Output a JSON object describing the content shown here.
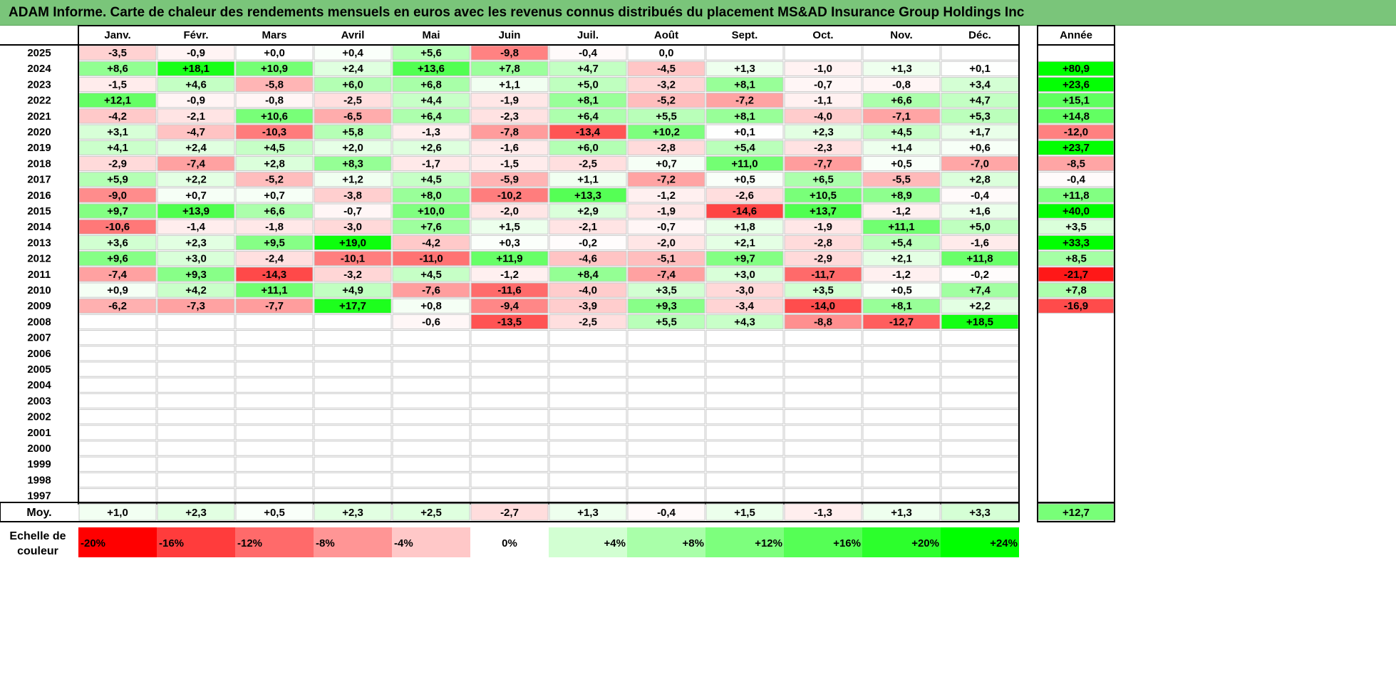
{
  "title": "ADAM Informe. Carte de chaleur des rendements mensuels en euros avec les revenus connus distribués du placement MS&AD Insurance Group Holdings Inc",
  "chart_data": {
    "type": "heatmap",
    "months": [
      "Janv.",
      "Févr.",
      "Mars",
      "Avril",
      "Mai",
      "Juin",
      "Juil.",
      "Août",
      "Sept.",
      "Oct.",
      "Nov.",
      "Déc."
    ],
    "year_header": "Année",
    "rows": [
      {
        "year": "2025",
        "values": [
          "-3,5",
          "-0,9",
          "+0,0",
          "+0,4",
          "+5,6",
          "-9,8",
          "-0,4",
          "0,0",
          "",
          "",
          "",
          ""
        ],
        "annual": ""
      },
      {
        "year": "2024",
        "values": [
          "+8,6",
          "+18,1",
          "+10,9",
          "+2,4",
          "+13,6",
          "+7,8",
          "+4,7",
          "-4,5",
          "+1,3",
          "-1,0",
          "+1,3",
          "+0,1"
        ],
        "annual": "+80,9"
      },
      {
        "year": "2023",
        "values": [
          "-1,5",
          "+4,6",
          "-5,8",
          "+6,0",
          "+6,8",
          "+1,1",
          "+5,0",
          "-3,2",
          "+8,1",
          "-0,7",
          "-0,8",
          "+3,4"
        ],
        "annual": "+23,6"
      },
      {
        "year": "2022",
        "values": [
          "+12,1",
          "-0,9",
          "-0,8",
          "-2,5",
          "+4,4",
          "-1,9",
          "+8,1",
          "-5,2",
          "-7,2",
          "-1,1",
          "+6,6",
          "+4,7"
        ],
        "annual": "+15,1"
      },
      {
        "year": "2021",
        "values": [
          "-4,2",
          "-2,1",
          "+10,6",
          "-6,5",
          "+6,4",
          "-2,3",
          "+6,4",
          "+5,5",
          "+8,1",
          "-4,0",
          "-7,1",
          "+5,3"
        ],
        "annual": "+14,8"
      },
      {
        "year": "2020",
        "values": [
          "+3,1",
          "-4,7",
          "-10,3",
          "+5,8",
          "-1,3",
          "-7,8",
          "-13,4",
          "+10,2",
          "+0,1",
          "+2,3",
          "+4,5",
          "+1,7"
        ],
        "annual": "-12,0"
      },
      {
        "year": "2019",
        "values": [
          "+4,1",
          "+2,4",
          "+4,5",
          "+2,0",
          "+2,6",
          "-1,6",
          "+6,0",
          "-2,8",
          "+5,4",
          "-2,3",
          "+1,4",
          "+0,6"
        ],
        "annual": "+23,7"
      },
      {
        "year": "2018",
        "values": [
          "-2,9",
          "-7,4",
          "+2,8",
          "+8,3",
          "-1,7",
          "-1,5",
          "-2,5",
          "+0,7",
          "+11,0",
          "-7,7",
          "+0,5",
          "-7,0"
        ],
        "annual": "-8,5"
      },
      {
        "year": "2017",
        "values": [
          "+5,9",
          "+2,2",
          "-5,2",
          "+1,2",
          "+4,5",
          "-5,9",
          "+1,1",
          "-7,2",
          "+0,5",
          "+6,5",
          "-5,5",
          "+2,8"
        ],
        "annual": "-0,4"
      },
      {
        "year": "2016",
        "values": [
          "-9,0",
          "+0,7",
          "+0,7",
          "-3,8",
          "+8,0",
          "-10,2",
          "+13,3",
          "-1,2",
          "-2,6",
          "+10,5",
          "+8,9",
          "-0,4"
        ],
        "annual": "+11,8"
      },
      {
        "year": "2015",
        "values": [
          "+9,7",
          "+13,9",
          "+6,6",
          "-0,7",
          "+10,0",
          "-2,0",
          "+2,9",
          "-1,9",
          "-14,6",
          "+13,7",
          "-1,2",
          "+1,6"
        ],
        "annual": "+40,0"
      },
      {
        "year": "2014",
        "values": [
          "-10,6",
          "-1,4",
          "-1,8",
          "-3,0",
          "+7,6",
          "+1,5",
          "-2,1",
          "-0,7",
          "+1,8",
          "-1,9",
          "+11,1",
          "+5,0"
        ],
        "annual": "+3,5"
      },
      {
        "year": "2013",
        "values": [
          "+3,6",
          "+2,3",
          "+9,5",
          "+19,0",
          "-4,2",
          "+0,3",
          "-0,2",
          "-2,0",
          "+2,1",
          "-2,8",
          "+5,4",
          "-1,6"
        ],
        "annual": "+33,3"
      },
      {
        "year": "2012",
        "values": [
          "+9,6",
          "+3,0",
          "-2,4",
          "-10,1",
          "-11,0",
          "+11,9",
          "-4,6",
          "-5,1",
          "+9,7",
          "-2,9",
          "+2,1",
          "+11,8"
        ],
        "annual": "+8,5"
      },
      {
        "year": "2011",
        "values": [
          "-7,4",
          "+9,3",
          "-14,3",
          "-3,2",
          "+4,5",
          "-1,2",
          "+8,4",
          "-7,4",
          "+3,0",
          "-11,7",
          "-1,2",
          "-0,2"
        ],
        "annual": "-21,7"
      },
      {
        "year": "2010",
        "values": [
          "+0,9",
          "+4,2",
          "+11,1",
          "+4,9",
          "-7,6",
          "-11,6",
          "-4,0",
          "+3,5",
          "-3,0",
          "+3,5",
          "+0,5",
          "+7,4"
        ],
        "annual": "+7,8"
      },
      {
        "year": "2009",
        "values": [
          "-6,2",
          "-7,3",
          "-7,7",
          "+17,7",
          "+0,8",
          "-9,4",
          "-3,9",
          "+9,3",
          "-3,4",
          "-14,0",
          "+8,1",
          "+2,2"
        ],
        "annual": "-16,9"
      },
      {
        "year": "2008",
        "values": [
          "",
          "",
          "",
          "",
          "-0,6",
          "-13,5",
          "-2,5",
          "+5,5",
          "+4,3",
          "-8,8",
          "-12,7",
          "+18,5"
        ],
        "annual": ""
      },
      {
        "year": "2007",
        "values": [
          "",
          "",
          "",
          "",
          "",
          "",
          "",
          "",
          "",
          "",
          "",
          ""
        ],
        "annual": ""
      },
      {
        "year": "2006",
        "values": [
          "",
          "",
          "",
          "",
          "",
          "",
          "",
          "",
          "",
          "",
          "",
          ""
        ],
        "annual": ""
      },
      {
        "year": "2005",
        "values": [
          "",
          "",
          "",
          "",
          "",
          "",
          "",
          "",
          "",
          "",
          "",
          ""
        ],
        "annual": ""
      },
      {
        "year": "2004",
        "values": [
          "",
          "",
          "",
          "",
          "",
          "",
          "",
          "",
          "",
          "",
          "",
          ""
        ],
        "annual": ""
      },
      {
        "year": "2003",
        "values": [
          "",
          "",
          "",
          "",
          "",
          "",
          "",
          "",
          "",
          "",
          "",
          ""
        ],
        "annual": ""
      },
      {
        "year": "2002",
        "values": [
          "",
          "",
          "",
          "",
          "",
          "",
          "",
          "",
          "",
          "",
          "",
          ""
        ],
        "annual": ""
      },
      {
        "year": "2001",
        "values": [
          "",
          "",
          "",
          "",
          "",
          "",
          "",
          "",
          "",
          "",
          "",
          ""
        ],
        "annual": ""
      },
      {
        "year": "2000",
        "values": [
          "",
          "",
          "",
          "",
          "",
          "",
          "",
          "",
          "",
          "",
          "",
          ""
        ],
        "annual": ""
      },
      {
        "year": "1999",
        "values": [
          "",
          "",
          "",
          "",
          "",
          "",
          "",
          "",
          "",
          "",
          "",
          ""
        ],
        "annual": ""
      },
      {
        "year": "1998",
        "values": [
          "",
          "",
          "",
          "",
          "",
          "",
          "",
          "",
          "",
          "",
          "",
          ""
        ],
        "annual": ""
      },
      {
        "year": "1997",
        "values": [
          "",
          "",
          "",
          "",
          "",
          "",
          "",
          "",
          "",
          "",
          "",
          ""
        ],
        "annual": ""
      }
    ],
    "average": {
      "label": "Moy.",
      "values": [
        "+1,0",
        "+2,3",
        "+0,5",
        "+2,3",
        "+2,5",
        "-2,7",
        "+1,3",
        "-0,4",
        "+1,5",
        "-1,3",
        "+1,3",
        "+3,3"
      ],
      "annual": "+12,7"
    },
    "color_scale": {
      "label": "Echelle de couleur",
      "steps": [
        "-20%",
        "-16%",
        "-12%",
        "-8%",
        "-4%",
        "0%",
        "+4%",
        "+8%",
        "+12%",
        "+16%",
        "+20%",
        "+24%"
      ],
      "colors": [
        "#ff0000",
        "#ff3c3c",
        "#ff6a6a",
        "#ff9595",
        "#ffc8c8",
        "#ffffff",
        "#d2ffd2",
        "#a9ffa9",
        "#7dff7d",
        "#55ff55",
        "#2cff2c",
        "#00ff00"
      ]
    }
  }
}
